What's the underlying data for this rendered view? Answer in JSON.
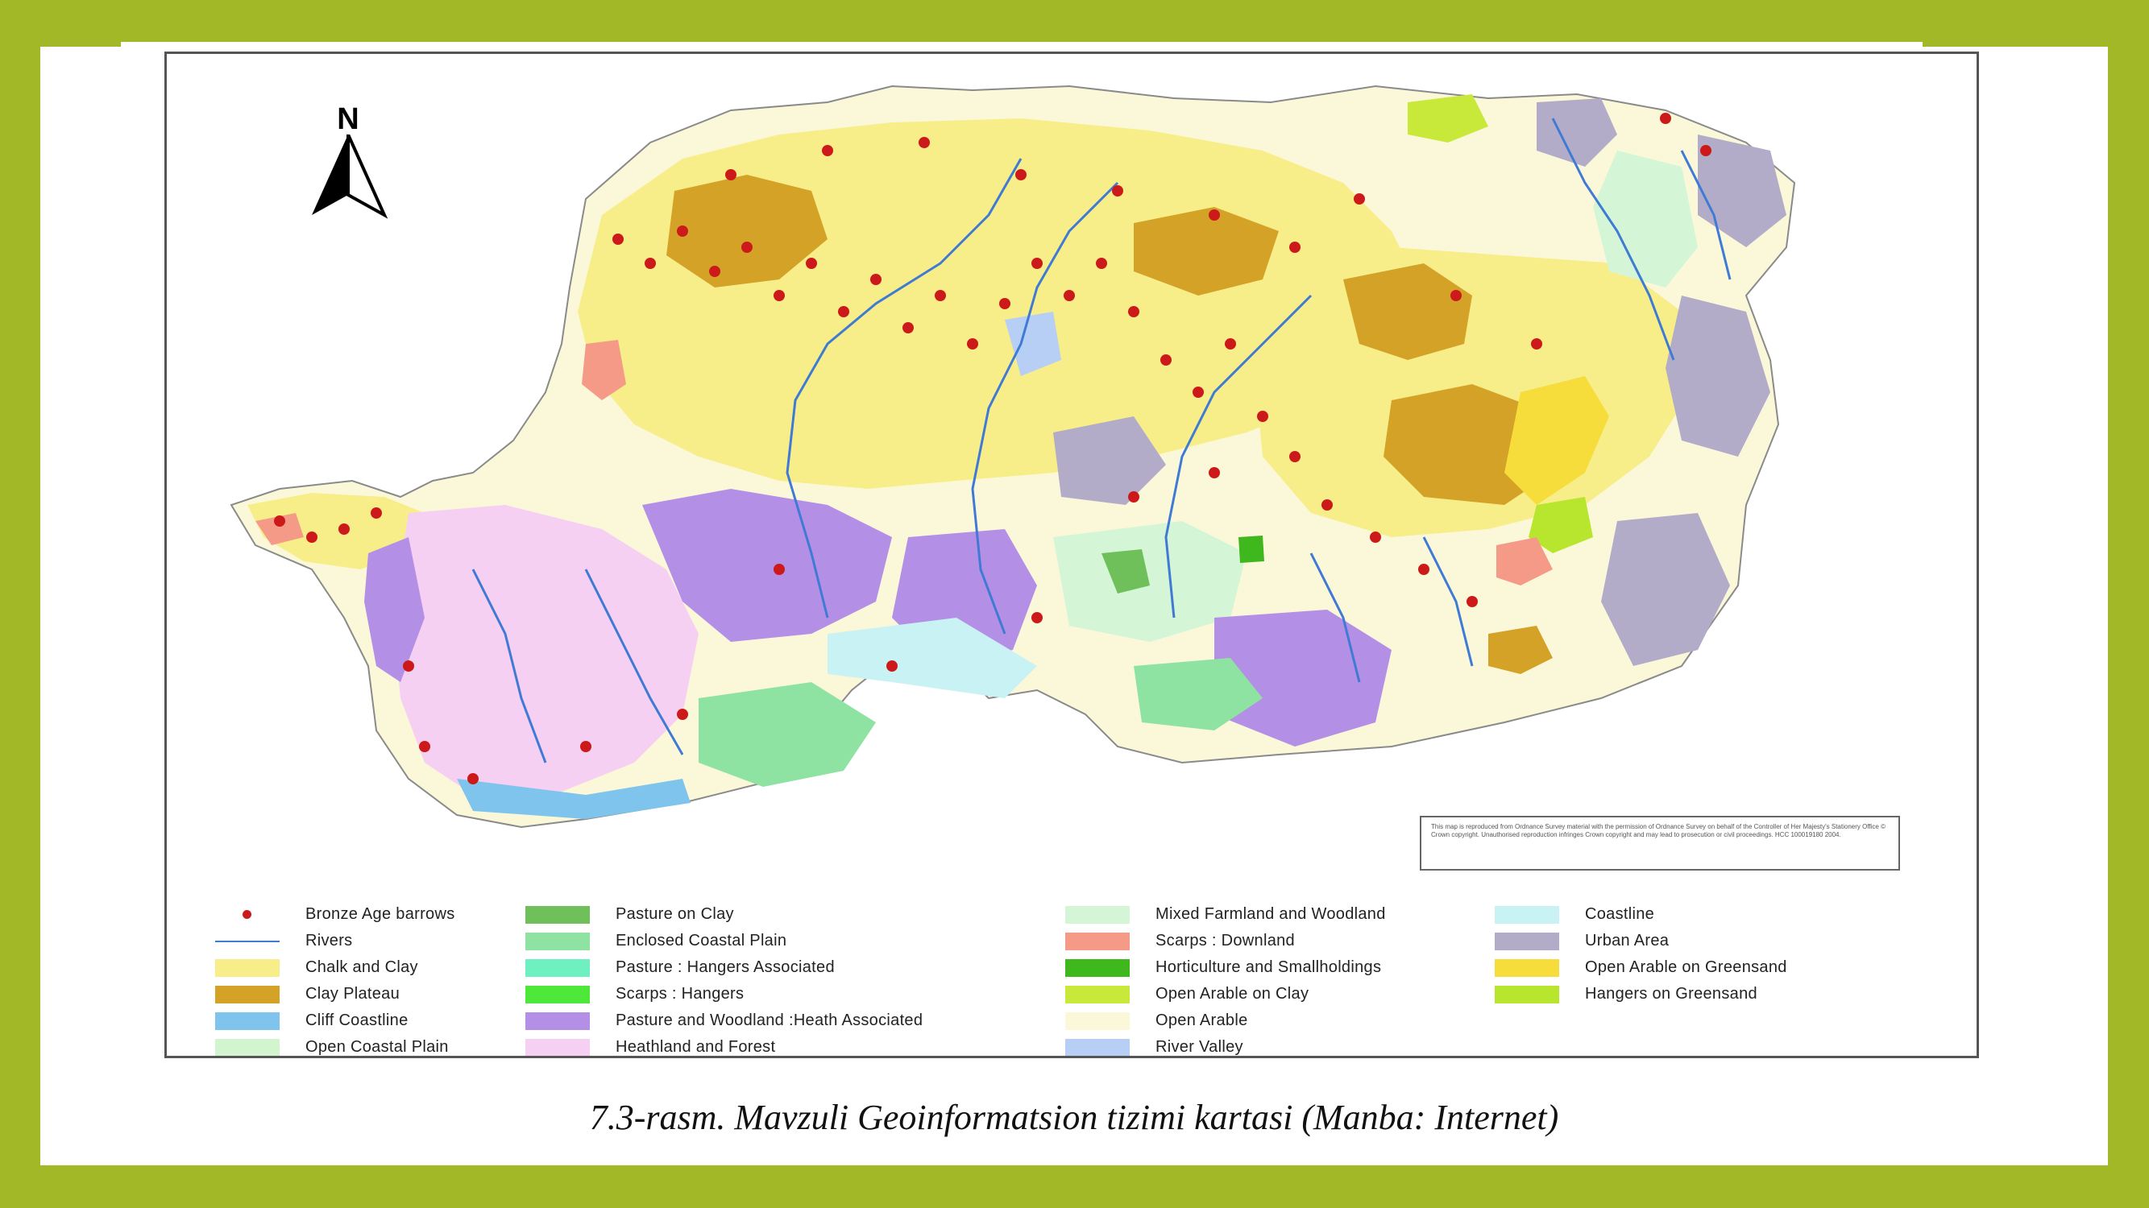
{
  "caption": "7.3-rasm. Mavzuli Geoinformatsion tizimi kartasi (Manba: Internet)",
  "map": {
    "north_label": "N",
    "copyright_text": "This map is reproduced from Ordnance Survey material with the permission of Ordnance Survey on behalf of the Controller of Her Majesty's Stationery Office © Crown copyright. Unauthorised reproduction infringes Crown copyright and may lead to prosecution or civil proceedings. HCC 100019180 2004.",
    "legend": {
      "columns": [
        [
          {
            "label": "Bronze Age barrows",
            "type": "dot",
            "color": "#cc1a1a"
          },
          {
            "label": "Rivers",
            "type": "line",
            "color": "#3f7ad4"
          },
          {
            "label": "Chalk and Clay",
            "type": "fill",
            "color": "#f7ee8a"
          },
          {
            "label": "Clay Plateau",
            "type": "fill",
            "color": "#d4a227"
          },
          {
            "label": "Cliff Coastline",
            "type": "fill",
            "color": "#7fc4ec"
          },
          {
            "label": "Open Coastal Plain",
            "type": "fill",
            "color": "#d2f4cf"
          }
        ],
        [
          {
            "label": "Pasture on Clay",
            "type": "fill",
            "color": "#6fbf5a"
          },
          {
            "label": "Enclosed Coastal Plain",
            "type": "fill",
            "color": "#8fe3a2"
          },
          {
            "label": "Pasture : Hangers Associated",
            "type": "fill",
            "color": "#6ef0c0"
          },
          {
            "label": "Scarps : Hangers",
            "type": "fill",
            "color": "#4ee83a"
          },
          {
            "label": "Pasture and Woodland :Heath Associated",
            "type": "fill",
            "color": "#b48fe6"
          },
          {
            "label": "Heathland and Forest",
            "type": "fill",
            "color": "#f6d0f2"
          }
        ],
        [
          {
            "label": "Mixed Farmland and Woodland",
            "type": "fill",
            "color": "#d4f5d6"
          },
          {
            "label": "Scarps : Downland",
            "type": "fill",
            "color": "#f49a86"
          },
          {
            "label": "Horticulture and Smallholdings",
            "type": "fill",
            "color": "#3fb81e"
          },
          {
            "label": "Open Arable on Clay",
            "type": "fill",
            "color": "#c8e83a"
          },
          {
            "label": "Open Arable",
            "type": "fill",
            "color": "#fbf8da"
          },
          {
            "label": "River Valley",
            "type": "fill",
            "color": "#b7cff4"
          }
        ],
        [
          {
            "label": "Coastline",
            "type": "fill",
            "color": "#c9f2f4"
          },
          {
            "label": "Urban Area",
            "type": "fill",
            "color": "#b3acc9"
          },
          {
            "label": "Open Arable on Greensand",
            "type": "fill",
            "color": "#f7dd3c"
          },
          {
            "label": "Hangers on Greensand",
            "type": "fill",
            "color": "#b8e62e"
          }
        ]
      ]
    }
  }
}
